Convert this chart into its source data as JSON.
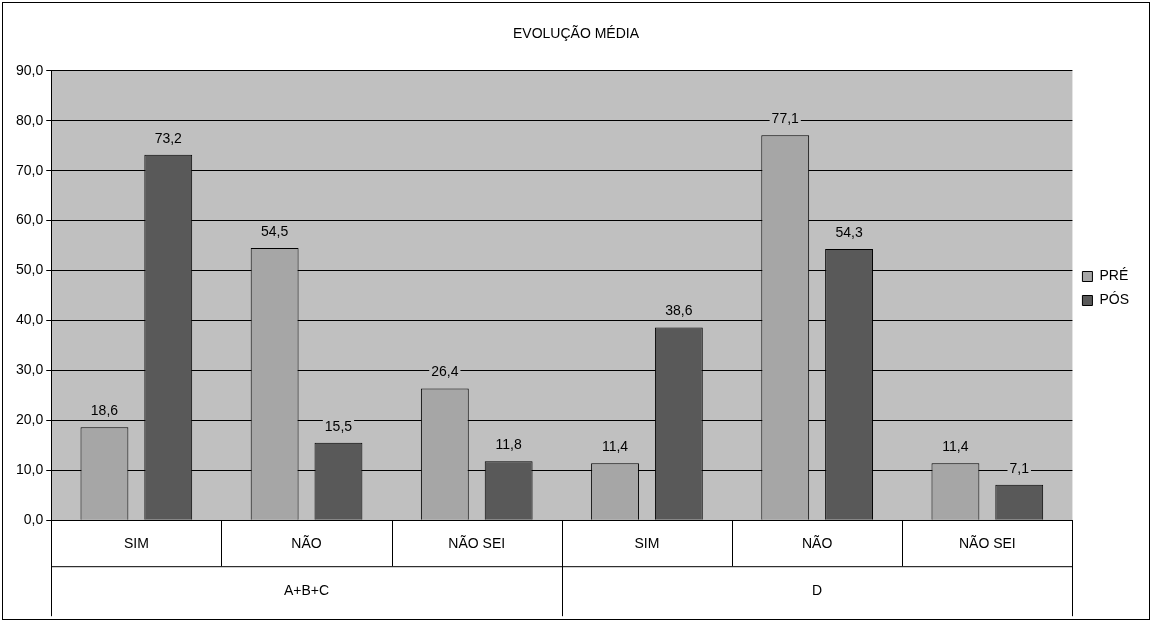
{
  "chart_data": {
    "type": "bar",
    "title": "EVOLUÇÃO MÉDIA",
    "categories": [
      "SIM",
      "NÃO",
      "NÃO SEI",
      "SIM",
      "NÃO",
      "NÃO SEI"
    ],
    "series": [
      {
        "name": "PRÉ",
        "color": "#a6a6a6",
        "values": [
          18.6,
          54.5,
          26.4,
          11.4,
          77.1,
          11.4
        ],
        "value_labels": [
          "18,6",
          "54,5",
          "26,4",
          "11,4",
          "77,1",
          "11,4"
        ]
      },
      {
        "name": "PÓS",
        "color": "#595959",
        "values": [
          73.2,
          15.5,
          11.8,
          38.6,
          54.3,
          7.1
        ],
        "value_labels": [
          "73,2",
          "15,5",
          "11,8",
          "38,6",
          "54,3",
          "7,1"
        ]
      }
    ],
    "annotations": [
      "A+B+C",
      "D"
    ],
    "ylim": [
      0,
      90
    ],
    "yticks": [
      {
        "value": 0,
        "label": "0,0"
      },
      {
        "value": 10,
        "label": "10,0"
      },
      {
        "value": 20,
        "label": "20,0"
      },
      {
        "value": 30,
        "label": "30,0"
      },
      {
        "value": 40,
        "label": "40,0"
      },
      {
        "value": 50,
        "label": "50,0"
      },
      {
        "value": 60,
        "label": "60,0"
      },
      {
        "value": 70,
        "label": "70,0"
      },
      {
        "value": 80,
        "label": "80,0"
      },
      {
        "value": 90,
        "label": "90,0"
      }
    ],
    "grid": "y",
    "legend": "right"
  }
}
